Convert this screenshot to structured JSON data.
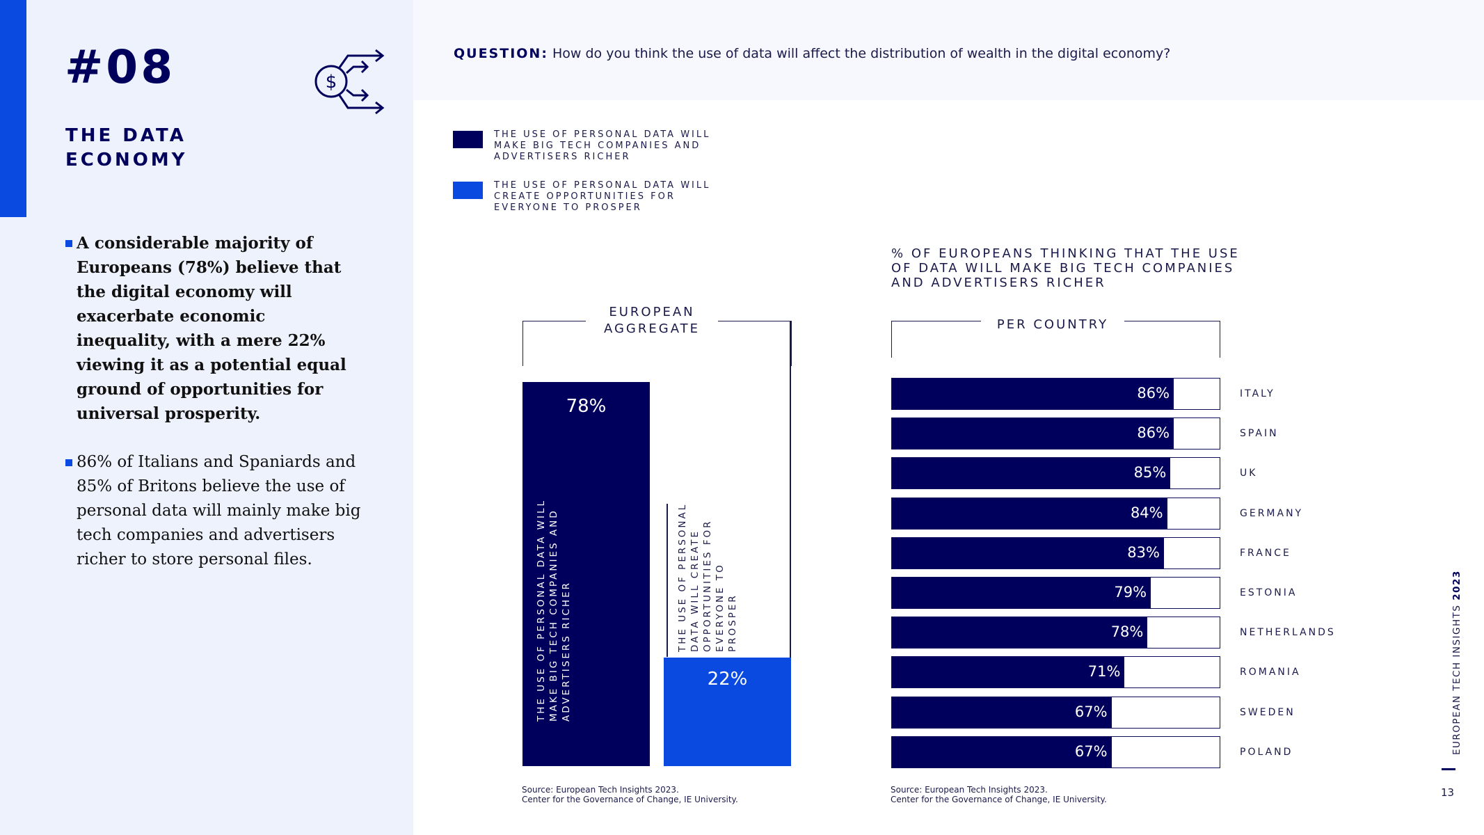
{
  "header": {
    "section_number": "#08",
    "section_title": "THE DATA ECONOMY",
    "icon": "money-arrows-icon"
  },
  "bullets": [
    {
      "text": "A considerable majority of Europeans (78%) believe that the digital economy will exacerbate economic inequality, with a mere 22% viewing it as a potential equal ground of opportunities for universal prosperity.",
      "bold": true
    },
    {
      "text": "86% of Italians and Spaniards and 85% of Britons believe the use of personal data will mainly make big tech companies and advertisers richer to store personal files.",
      "bold": false
    }
  ],
  "question": {
    "label": "QUESTION:",
    "text": "How do you think the use of data will affect the distribution of wealth in the digital economy?"
  },
  "legend": [
    {
      "label": "THE USE OF PERSONAL DATA WILL MAKE BIG TECH COMPANIES AND ADVERTISERS RICHER",
      "color": "#00005c"
    },
    {
      "label": "THE USE OF PERSONAL DATA WILL CREATE OPPORTUNITIES FOR EVERYONE TO PROSPER",
      "color": "#0a4ae0"
    }
  ],
  "aggregate_header": "EUROPEAN AGGREGATE",
  "aggregate_bar_labels": [
    "THE USE OF PERSONAL DATA WILL MAKE BIG TECH COMPANIES AND ADVERTISERS RICHER",
    "THE USE OF PERSONAL DATA WILL CREATE OPPORTUNITIES FOR EVERYONE TO PROSPER"
  ],
  "country_header": "PER COUNTRY",
  "country_chart_title": "% OF EUROPEANS THINKING THAT THE USE OF DATA WILL MAKE BIG TECH COMPANIES AND ADVERTISERS RICHER",
  "source": {
    "line1": "Source: European Tech Insights 2023.",
    "line2": "Center for the Governance of Change, IE University."
  },
  "footer": {
    "brand": "EUROPEAN TECH INSIGHTS",
    "year": "2023",
    "page": "13"
  },
  "chart_data": [
    {
      "type": "bar",
      "title": "EUROPEAN AGGREGATE",
      "categories": [
        "THE USE OF PERSONAL DATA WILL MAKE BIG TECH COMPANIES AND ADVERTISERS RICHER",
        "THE USE OF PERSONAL DATA WILL CREATE OPPORTUNITIES FOR EVERYONE TO PROSPER"
      ],
      "values": [
        78,
        22
      ],
      "value_labels": [
        "78%",
        "22%"
      ],
      "colors": [
        "#00005c",
        "#0a4ae0"
      ],
      "ylim": [
        0,
        78
      ]
    },
    {
      "type": "bar",
      "orientation": "horizontal",
      "title": "% OF EUROPEANS THINKING THAT THE USE OF DATA WILL MAKE BIG TECH COMPANIES AND ADVERTISERS RICHER",
      "subtitle": "PER COUNTRY",
      "categories": [
        "ITALY",
        "SPAIN",
        "UK",
        "GERMANY",
        "FRANCE",
        "ESTONIA",
        "NETHERLANDS",
        "ROMANIA",
        "SWEDEN",
        "POLAND"
      ],
      "values": [
        86,
        86,
        85,
        84,
        83,
        79,
        78,
        71,
        67,
        67
      ],
      "value_labels": [
        "86%",
        "86%",
        "85%",
        "84%",
        "83%",
        "79%",
        "78%",
        "71%",
        "67%",
        "67%"
      ],
      "xlim": [
        0,
        100
      ],
      "color": "#00005c"
    }
  ]
}
